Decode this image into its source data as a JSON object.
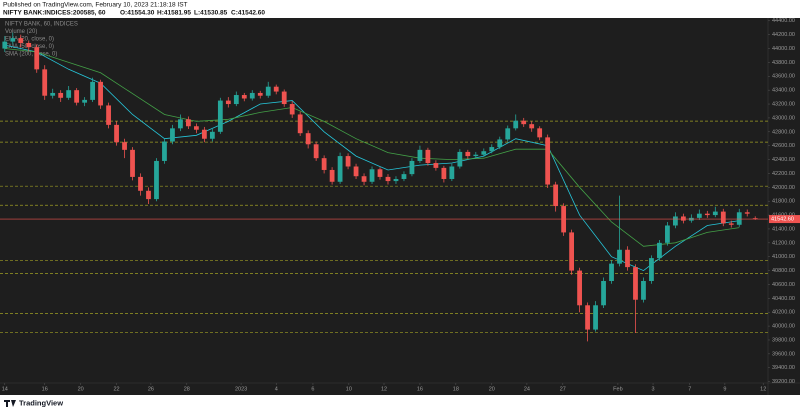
{
  "chart_data": {
    "type": "candlestick",
    "published": "Published on TradingView.com, February 10, 2023 21:18:18 IST",
    "symbol": "NIFTY BANK:INDICES:200585, 60",
    "legend_ohlc": [
      "O:41554.30",
      "H:41581.95",
      "L:41530.85",
      "C:41542.60"
    ],
    "indicators": [
      "NIFTY BANK, 60, INDICES",
      "Volume (20)",
      "EMA (20, close, 0)",
      "EMA (50, close, 0)",
      "SMA (200, close, 0)"
    ],
    "footer": "TradingView",
    "up_color": "#26a69a",
    "down_color": "#ef5350",
    "ohlc": [
      [
        44000,
        44180,
        43950,
        44100
      ],
      [
        44100,
        44230,
        44060,
        44150
      ],
      [
        44150,
        44200,
        44020,
        44080
      ],
      [
        44080,
        44110,
        43960,
        44020
      ],
      [
        44020,
        44060,
        43650,
        43700
      ],
      [
        43700,
        43760,
        43260,
        43320
      ],
      [
        43320,
        43420,
        43280,
        43360
      ],
      [
        43360,
        43400,
        43230,
        43290
      ],
      [
        43290,
        43460,
        43260,
        43400
      ],
      [
        43400,
        43430,
        43180,
        43220
      ],
      [
        43220,
        43300,
        43170,
        43260
      ],
      [
        43260,
        43580,
        43230,
        43520
      ],
      [
        43520,
        43550,
        43130,
        43180
      ],
      [
        43180,
        43220,
        42850,
        42900
      ],
      [
        42900,
        42950,
        42600,
        42650
      ],
      [
        42650,
        42700,
        42420,
        42540
      ],
      [
        42540,
        42580,
        42100,
        42150
      ],
      [
        42150,
        42200,
        41880,
        41950
      ],
      [
        41950,
        42000,
        41760,
        41830
      ],
      [
        41830,
        42420,
        41800,
        42380
      ],
      [
        42380,
        42700,
        42340,
        42660
      ],
      [
        42660,
        42900,
        42620,
        42850
      ],
      [
        42850,
        43050,
        42810,
        42980
      ],
      [
        42980,
        43020,
        42840,
        42880
      ],
      [
        42880,
        42920,
        42780,
        42830
      ],
      [
        42830,
        42870,
        42650,
        42700
      ],
      [
        42700,
        42840,
        42660,
        42800
      ],
      [
        42800,
        43290,
        42770,
        43250
      ],
      [
        43250,
        43300,
        43150,
        43200
      ],
      [
        43200,
        43380,
        43170,
        43330
      ],
      [
        43330,
        43360,
        43240,
        43280
      ],
      [
        43280,
        43400,
        43250,
        43360
      ],
      [
        43360,
        43390,
        43280,
        43320
      ],
      [
        43320,
        43520,
        43290,
        43450
      ],
      [
        43450,
        43480,
        43340,
        43380
      ],
      [
        43380,
        43410,
        43160,
        43200
      ],
      [
        43200,
        43240,
        43000,
        43050
      ],
      [
        43050,
        43090,
        42740,
        42780
      ],
      [
        42780,
        42820,
        42560,
        42620
      ],
      [
        42620,
        42660,
        42380,
        42420
      ],
      [
        42420,
        42460,
        42200,
        42250
      ],
      [
        42250,
        42290,
        42040,
        42080
      ],
      [
        42080,
        42500,
        42050,
        42450
      ],
      [
        42450,
        42490,
        42260,
        42300
      ],
      [
        42300,
        42340,
        42120,
        42160
      ],
      [
        42160,
        42200,
        42030,
        42080
      ],
      [
        42080,
        42300,
        42050,
        42260
      ],
      [
        42260,
        42290,
        42110,
        42150
      ],
      [
        42150,
        42190,
        42040,
        42090
      ],
      [
        42090,
        42160,
        42050,
        42120
      ],
      [
        42120,
        42230,
        42090,
        42190
      ],
      [
        42190,
        42420,
        42160,
        42380
      ],
      [
        42380,
        42600,
        42350,
        42540
      ],
      [
        42540,
        42570,
        42310,
        42350
      ],
      [
        42350,
        42390,
        42240,
        42280
      ],
      [
        42280,
        42310,
        42070,
        42120
      ],
      [
        42120,
        42340,
        42090,
        42300
      ],
      [
        42300,
        42550,
        42270,
        42510
      ],
      [
        42510,
        42540,
        42410,
        42450
      ],
      [
        42450,
        42510,
        42420,
        42470
      ],
      [
        42470,
        42560,
        42440,
        42520
      ],
      [
        42520,
        42620,
        42490,
        42580
      ],
      [
        42580,
        42730,
        42550,
        42690
      ],
      [
        42690,
        42890,
        42660,
        42850
      ],
      [
        42850,
        43050,
        42820,
        42960
      ],
      [
        42960,
        43000,
        42870,
        42910
      ],
      [
        42910,
        42950,
        42800,
        42850
      ],
      [
        42850,
        42880,
        42680,
        42720
      ],
      [
        42720,
        42760,
        41990,
        42040
      ],
      [
        42040,
        42080,
        41650,
        41730
      ],
      [
        41730,
        41770,
        41300,
        41350
      ],
      [
        41350,
        41390,
        40740,
        40800
      ],
      [
        40800,
        40840,
        40200,
        40300
      ],
      [
        40300,
        40340,
        39780,
        39950
      ],
      [
        39950,
        40360,
        39920,
        40300
      ],
      [
        40300,
        40700,
        40260,
        40650
      ],
      [
        40650,
        40950,
        40610,
        40900
      ],
      [
        40900,
        41880,
        40860,
        41100
      ],
      [
        41100,
        41150,
        40800,
        40850
      ],
      [
        40850,
        40890,
        39900,
        40380
      ],
      [
        40380,
        40700,
        40340,
        40650
      ],
      [
        40650,
        41020,
        40610,
        40980
      ],
      [
        40980,
        41240,
        40940,
        41200
      ],
      [
        41200,
        41500,
        41160,
        41450
      ],
      [
        41450,
        41640,
        41410,
        41580
      ],
      [
        41580,
        41620,
        41480,
        41520
      ],
      [
        41520,
        41610,
        41490,
        41560
      ],
      [
        41560,
        41680,
        41530,
        41620
      ],
      [
        41620,
        41660,
        41560,
        41600
      ],
      [
        41600,
        41720,
        41570,
        41650
      ],
      [
        41650,
        41690,
        41440,
        41480
      ],
      [
        41480,
        41520,
        41420,
        41460
      ],
      [
        41460,
        41690,
        41430,
        41640
      ],
      [
        41640,
        41680,
        41580,
        41620
      ],
      [
        41554.3,
        41581.95,
        41530.85,
        41542.6
      ]
    ],
    "lines": [
      {
        "color": "#26c6da",
        "x": [
          0,
          4,
          8,
          12,
          16,
          20,
          24,
          28,
          32,
          36,
          40,
          44,
          48,
          52,
          56,
          60,
          64,
          68,
          72,
          76,
          80,
          84,
          88,
          92
        ],
        "values": [
          44050,
          43950,
          43700,
          43500,
          43050,
          42700,
          42750,
          42950,
          43200,
          43250,
          42800,
          42450,
          42250,
          42320,
          42350,
          42450,
          42700,
          42600,
          41600,
          41000,
          40800,
          41150,
          41450,
          41520
        ]
      },
      {
        "color": "#43a047",
        "x": [
          0,
          4,
          8,
          12,
          16,
          20,
          24,
          28,
          32,
          36,
          40,
          44,
          48,
          52,
          56,
          60,
          64,
          68,
          72,
          76,
          80,
          84,
          88,
          92
        ],
        "values": [
          44000,
          43950,
          43800,
          43650,
          43350,
          43050,
          42950,
          42980,
          43080,
          43150,
          42950,
          42700,
          42500,
          42420,
          42400,
          42420,
          42550,
          42550,
          42000,
          41500,
          41150,
          41200,
          41350,
          41420
        ]
      }
    ],
    "levels": [
      42954,
      42651,
      42016,
      41742,
      40948,
      40760,
      40183,
      39909
    ],
    "level_color": "#9e9d24",
    "last_price": {
      "value": 41542.6,
      "label": "41542.60"
    },
    "xlim": [
      -0.6,
      95.6
    ],
    "xticks": [
      {
        "value": 0,
        "label": "14"
      },
      {
        "value": 5,
        "label": "16"
      },
      {
        "value": 9.5,
        "label": "20"
      },
      {
        "value": 14,
        "label": "22"
      },
      {
        "value": 18.3,
        "label": "26"
      },
      {
        "value": 22.8,
        "label": "28"
      },
      {
        "value": 29.6,
        "label": "2023"
      },
      {
        "value": 34,
        "label": "4"
      },
      {
        "value": 38.6,
        "label": "6"
      },
      {
        "value": 43.1,
        "label": "10"
      },
      {
        "value": 47.5,
        "label": "12"
      },
      {
        "value": 52,
        "label": "16"
      },
      {
        "value": 56.5,
        "label": "18"
      },
      {
        "value": 61,
        "label": "20"
      },
      {
        "value": 65.4,
        "label": "24"
      },
      {
        "value": 69.9,
        "label": "27"
      },
      {
        "value": 76.8,
        "label": "Feb"
      },
      {
        "value": 81.2,
        "label": "3"
      },
      {
        "value": 85.8,
        "label": "7"
      },
      {
        "value": 90.2,
        "label": "9"
      },
      {
        "value": 95,
        "label": "12"
      }
    ],
    "ylim": [
      39180,
      44440
    ],
    "yticks": [
      {
        "value": 39200,
        "label": "39200.00"
      },
      {
        "value": 39400,
        "label": "39400.00"
      },
      {
        "value": 39600,
        "label": "39600.00"
      },
      {
        "value": 39800,
        "label": "39800.00"
      },
      {
        "value": 40000,
        "label": "40000.00"
      },
      {
        "value": 40200,
        "label": "40200.00"
      },
      {
        "value": 40400,
        "label": "40400.00"
      },
      {
        "value": 40600,
        "label": "40600.00"
      },
      {
        "value": 40800,
        "label": "40800.00"
      },
      {
        "value": 41000,
        "label": "41000.00"
      },
      {
        "value": 41200,
        "label": "41200.00"
      },
      {
        "value": 41400,
        "label": "41400.00"
      },
      {
        "value": 41600,
        "label": "41600.00"
      },
      {
        "value": 41800,
        "label": "41800.00"
      },
      {
        "value": 42000,
        "label": "42000.00"
      },
      {
        "value": 42200,
        "label": "42200.00"
      },
      {
        "value": 42400,
        "label": "42400.00"
      },
      {
        "value": 42600,
        "label": "42600.00"
      },
      {
        "value": 42800,
        "label": "42800.00"
      },
      {
        "value": 43000,
        "label": "43000.00"
      },
      {
        "value": 43200,
        "label": "43200.00"
      },
      {
        "value": 43400,
        "label": "43400.00"
      },
      {
        "value": 43600,
        "label": "43600.00"
      },
      {
        "value": 43800,
        "label": "43800.00"
      },
      {
        "value": 44000,
        "label": "44000.00"
      },
      {
        "value": 44200,
        "label": "44200.00"
      },
      {
        "value": 44400,
        "label": "44400.00"
      }
    ]
  }
}
